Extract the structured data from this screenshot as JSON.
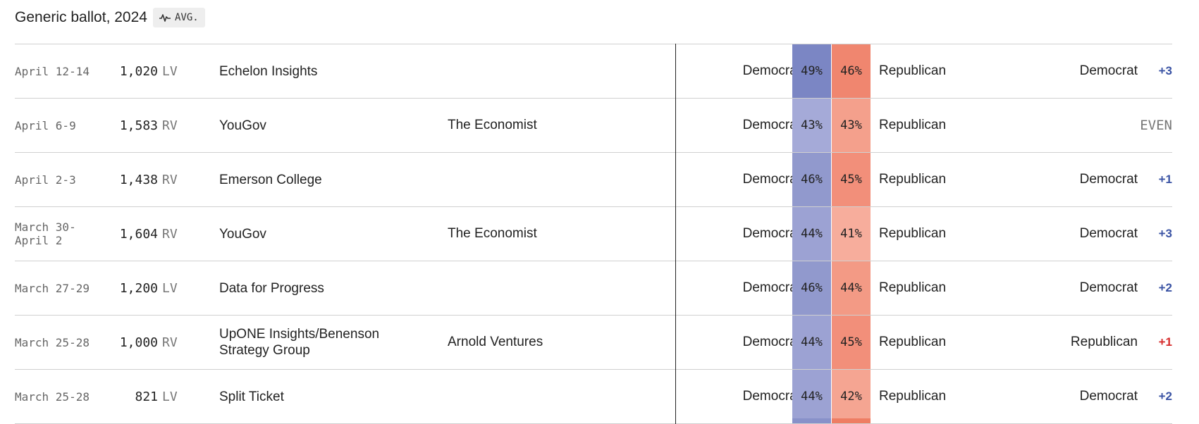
{
  "header": {
    "title": "Generic ballot, 2024",
    "avg_label": "AVG."
  },
  "colors": {
    "dem_margin": "#3a53a4",
    "rep_margin": "#d62b2b"
  },
  "rows": [
    {
      "date": "April 12-14",
      "sample": "1,020",
      "sample_type": "LV",
      "pollster": "Echelon Insights",
      "sponsor": "",
      "dem_label": "Democrat",
      "dem_pct": "49%",
      "rep_pct": "46%",
      "rep_label": "Republican",
      "leader": "Democrat",
      "margin": "+3",
      "dem_color": "#7b86c4",
      "rep_color": "#f0866f"
    },
    {
      "date": "April 6-9",
      "sample": "1,583",
      "sample_type": "RV",
      "pollster": "YouGov",
      "sponsor": "The Economist",
      "dem_label": "Democrat",
      "dem_pct": "43%",
      "rep_pct": "43%",
      "rep_label": "Republican",
      "leader": "",
      "margin": "EVEN",
      "dem_color": "#a5aad8",
      "rep_color": "#f4a08c"
    },
    {
      "date": "April 2-3",
      "sample": "1,438",
      "sample_type": "RV",
      "pollster": "Emerson College",
      "sponsor": "",
      "dem_label": "Democrat",
      "dem_pct": "46%",
      "rep_pct": "45%",
      "rep_label": "Republican",
      "leader": "Democrat",
      "margin": "+1",
      "dem_color": "#9199cd",
      "rep_color": "#f28f7a"
    },
    {
      "date": "March 30-\nApril 2",
      "sample": "1,604",
      "sample_type": "RV",
      "pollster": "YouGov",
      "sponsor": "The Economist",
      "dem_label": "Democrat",
      "dem_pct": "44%",
      "rep_pct": "41%",
      "rep_label": "Republican",
      "leader": "Democrat",
      "margin": "+3",
      "dem_color": "#9ca2d3",
      "rep_color": "#f7ad9c"
    },
    {
      "date": "March 27-29",
      "sample": "1,200",
      "sample_type": "LV",
      "pollster": "Data for Progress",
      "sponsor": "",
      "dem_label": "Democrat",
      "dem_pct": "46%",
      "rep_pct": "44%",
      "rep_label": "Republican",
      "leader": "Democrat",
      "margin": "+2",
      "dem_color": "#9199cd",
      "rep_color": "#f39a85"
    },
    {
      "date": "March 25-28",
      "sample": "1,000",
      "sample_type": "RV",
      "pollster": "UpONE Insights/Benenson\nStrategy Group",
      "sponsor": "Arnold Ventures",
      "dem_label": "Democrat",
      "dem_pct": "44%",
      "rep_pct": "45%",
      "rep_label": "Republican",
      "leader": "Republican",
      "margin": "+1",
      "dem_color": "#9ca2d3",
      "rep_color": "#f28f7a"
    },
    {
      "date": "March 25-28",
      "sample": "821",
      "sample_type": "LV",
      "pollster": "Split Ticket",
      "sponsor": "",
      "dem_label": "Democrat",
      "dem_pct": "44%",
      "rep_pct": "42%",
      "rep_label": "Republican",
      "leader": "Democrat",
      "margin": "+2",
      "dem_color": "#9ca2d3",
      "rep_color": "#f5a592"
    }
  ],
  "next_row_colors": {
    "dem": "#8891c9",
    "rep": "#ee7d63"
  }
}
